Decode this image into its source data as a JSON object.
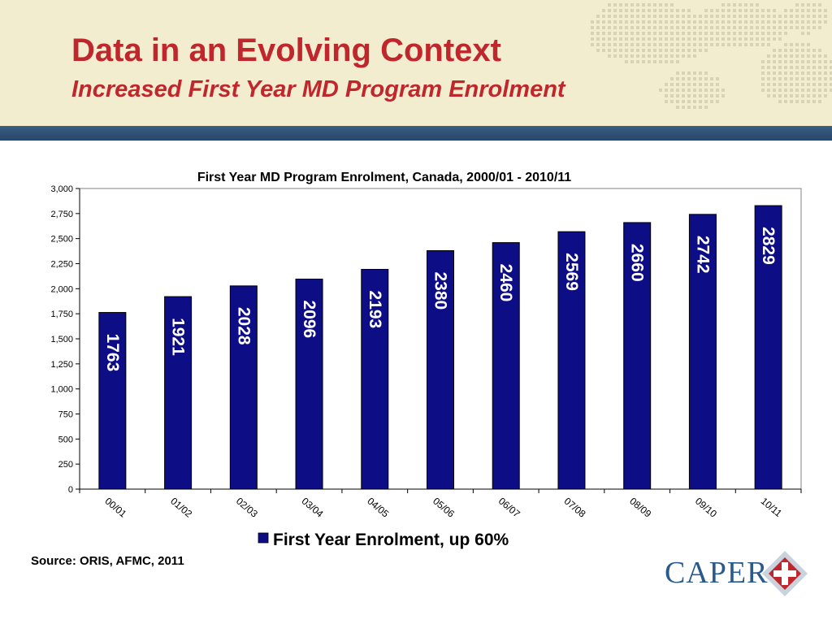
{
  "slide": {
    "title": "Data in an Evolving Context",
    "subtitle": "Increased First Year MD Program Enrolment",
    "source": "Source: ORIS, AFMC, 2011",
    "logo_text": "CAPER"
  },
  "colors": {
    "title": "#c0272d",
    "bar": "#0d0d85",
    "header_bg": "#f2edcf",
    "header_band": "#2e4f73",
    "logo_blue": "#2a5a8c",
    "logo_red": "#c0272d"
  },
  "chart_data": {
    "type": "bar",
    "title": "First Year MD Program Enrolment, Canada, 2000/01 - 2010/11",
    "categories": [
      "00/01",
      "01/02",
      "02/03",
      "03/04",
      "04/05",
      "05/06",
      "06/07",
      "07/08",
      "08/09",
      "09/10",
      "10/11"
    ],
    "series": [
      {
        "name": "First Year Enrolment, up 60%",
        "values": [
          1763,
          1921,
          2028,
          2096,
          2193,
          2380,
          2460,
          2569,
          2660,
          2742,
          2829
        ],
        "data_labels": [
          "1763",
          "1921",
          "2028",
          "2096",
          "2193",
          "2380",
          "2460",
          "2569",
          "2660",
          "2742",
          "2829"
        ]
      }
    ],
    "ylim": [
      0,
      3000
    ],
    "yticks": [
      0,
      250,
      500,
      750,
      1000,
      1250,
      1500,
      1750,
      2000,
      2250,
      2500,
      2750,
      3000
    ],
    "ytick_labels": [
      "0",
      "250",
      "500",
      "750",
      "1,000",
      "1,250",
      "1,500",
      "1,750",
      "2,000",
      "2,250",
      "2,500",
      "2,750",
      "3,000"
    ],
    "grid": true,
    "legend": "bottom"
  }
}
